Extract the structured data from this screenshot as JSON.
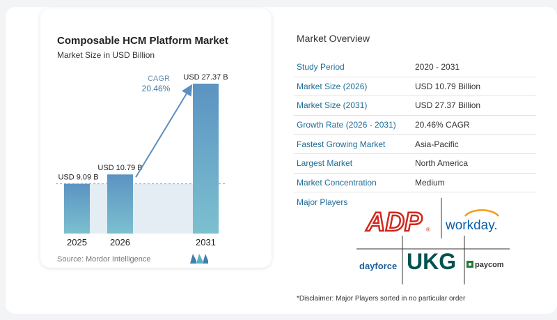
{
  "chart_data": {
    "type": "bar",
    "title": "Composable HCM Platform Market",
    "subtitle": "Market Size in USD Billion",
    "categories": [
      "2025",
      "2026",
      "2031"
    ],
    "values": [
      9.09,
      10.79,
      27.37
    ],
    "value_labels": [
      "USD 9.09 B",
      "USD 10.79 B",
      "USD 27.37 B"
    ],
    "cagr_label": "CAGR",
    "cagr_value": "20.46%",
    "colors": {
      "bar_top": "#5b93c2",
      "bar_bottom": "#7cc0cf",
      "arrow": "#5b8fbd",
      "shade": "#e4edf4"
    }
  },
  "source": "Source:  Mordor Intelligence",
  "overview": {
    "title": "Market Overview",
    "rows": [
      {
        "key": "Study Period",
        "value": "2020 - 2031"
      },
      {
        "key": "Market Size (2026)",
        "value": "USD 10.79 Billion"
      },
      {
        "key": "Market Size (2031)",
        "value": "USD 27.37 Billion"
      },
      {
        "key": "Growth Rate (2026 - 2031)",
        "value": "20.46% CAGR"
      },
      {
        "key": "Fastest Growing Market",
        "value": "Asia-Pacific"
      },
      {
        "key": "Largest Market",
        "value": "North America"
      },
      {
        "key": "Market Concentration",
        "value": "Medium"
      }
    ],
    "players_label": "Major Players",
    "players": {
      "adp": "ADP",
      "workday": "workday.",
      "dayforce": "dayforce",
      "ukg": "UKG",
      "paycom": "paycom"
    },
    "disclaimer": "*Disclaimer: Major Players sorted in no particular order"
  },
  "colors": {
    "accent": "#1e6c97",
    "adp_red": "#d0271d",
    "workday_blue": "#0b5fa5",
    "workday_orange": "#f39c12",
    "ukg_green": "#005151",
    "paycom_green": "#1f7a3a"
  }
}
